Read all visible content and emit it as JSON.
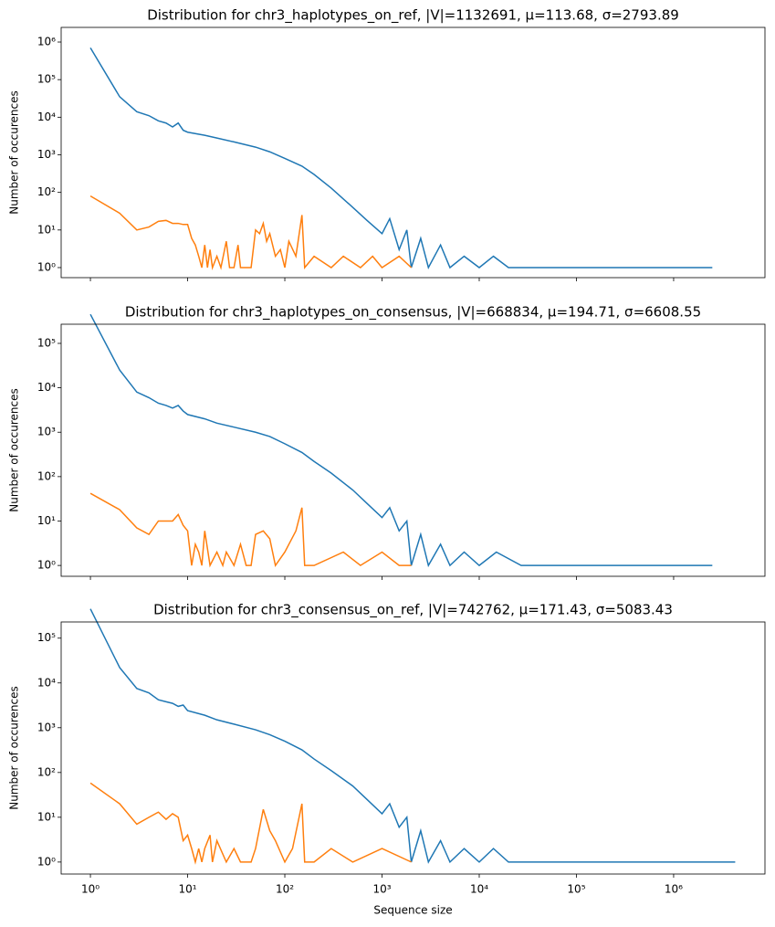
{
  "chart_data": [
    {
      "type": "line",
      "title": "Distribution for chr3_haplotypes_on_ref, |V|=1132691, μ=113.68, σ=2793.89",
      "ylabel": "Number of occurences",
      "log_x": true,
      "log_y": true,
      "xlim": [
        0.5,
        8700000
      ],
      "ylim": [
        0.54,
        2450000
      ],
      "xticks": [
        1,
        10,
        100,
        1000,
        10000,
        100000,
        1000000
      ],
      "yticks": [
        {
          "value": 1,
          "label": "10⁰"
        },
        {
          "value": 10,
          "label": "10¹"
        },
        {
          "value": 100,
          "label": "10²"
        },
        {
          "value": 1000,
          "label": "10³"
        },
        {
          "value": 10000,
          "label": "10⁴"
        },
        {
          "value": 100000,
          "label": "10⁵"
        },
        {
          "value": 1000000,
          "label": "10⁶"
        }
      ],
      "series": [
        {
          "color": "#1f77b4",
          "x": [
            1,
            2,
            3,
            4,
            5,
            6,
            7,
            8,
            9,
            10,
            15,
            20,
            30,
            50,
            70,
            100,
            150,
            200,
            300,
            500,
            700,
            1000,
            1200,
            1500,
            1800,
            2000,
            2500,
            3000,
            4000,
            5000,
            7000,
            10000,
            14000,
            20000,
            2500000
          ],
          "values": [
            700000,
            35000,
            14000,
            11000,
            8000,
            7000,
            5500,
            7000,
            4500,
            4000,
            3300,
            2800,
            2200,
            1600,
            1200,
            800,
            500,
            300,
            130,
            40,
            18,
            8,
            20,
            3,
            10,
            1,
            6,
            1,
            4,
            1,
            2,
            1,
            2,
            1,
            1
          ]
        },
        {
          "color": "#ff7f0e",
          "x": [
            1,
            2,
            3,
            4,
            5,
            6,
            7,
            8,
            9,
            10,
            11,
            12,
            13,
            14,
            15,
            16,
            17,
            18,
            20,
            22,
            25,
            27,
            30,
            33,
            35,
            40,
            45,
            50,
            55,
            60,
            65,
            70,
            80,
            90,
            100,
            110,
            130,
            150,
            160,
            200,
            300,
            400,
            600,
            800,
            1000,
            1500,
            2000
          ],
          "values": [
            80,
            28,
            10,
            12,
            17,
            18,
            15,
            15,
            14,
            14,
            6,
            4,
            2,
            1,
            4,
            1,
            3,
            1,
            2,
            1,
            5,
            1,
            1,
            4,
            1,
            1,
            1,
            10,
            8,
            15,
            5,
            8,
            2,
            3,
            1,
            5,
            2,
            25,
            1,
            2,
            1,
            2,
            1,
            2,
            1,
            2,
            1
          ]
        }
      ]
    },
    {
      "type": "line",
      "title": "Distribution for chr3_haplotypes_on_consensus, |V|=668834, μ=194.71, σ=6608.55",
      "ylabel": "Number of occurences",
      "log_x": true,
      "log_y": true,
      "xlim": [
        0.5,
        8700000
      ],
      "ylim": [
        0.57,
        270000
      ],
      "xticks": [
        1,
        10,
        100,
        1000,
        10000,
        100000,
        1000000
      ],
      "yticks": [
        {
          "value": 1,
          "label": "10⁰"
        },
        {
          "value": 10,
          "label": "10¹"
        },
        {
          "value": 100,
          "label": "10²"
        },
        {
          "value": 1000,
          "label": "10³"
        },
        {
          "value": 10000,
          "label": "10⁴"
        },
        {
          "value": 100000,
          "label": "10⁵"
        }
      ],
      "series": [
        {
          "color": "#1f77b4",
          "x": [
            1,
            2,
            3,
            4,
            5,
            6,
            7,
            8,
            9,
            10,
            15,
            20,
            30,
            50,
            70,
            100,
            150,
            200,
            300,
            500,
            700,
            1000,
            1200,
            1500,
            1800,
            2000,
            2500,
            3000,
            4000,
            5000,
            7000,
            10000,
            15000,
            27000,
            2500000
          ],
          "values": [
            450000,
            25000,
            8000,
            6000,
            4500,
            4000,
            3500,
            4000,
            3000,
            2500,
            2000,
            1600,
            1300,
            1000,
            800,
            550,
            350,
            220,
            120,
            50,
            25,
            12,
            20,
            6,
            10,
            1,
            5,
            1,
            3,
            1,
            2,
            1,
            2,
            1,
            1
          ]
        },
        {
          "color": "#ff7f0e",
          "x": [
            1,
            2,
            3,
            4,
            5,
            6,
            7,
            8,
            9,
            10,
            11,
            12,
            13,
            14,
            15,
            17,
            20,
            23,
            25,
            30,
            35,
            40,
            45,
            50,
            60,
            70,
            80,
            100,
            130,
            150,
            160,
            200,
            400,
            600,
            1000,
            1500,
            2000
          ],
          "values": [
            42,
            18,
            7,
            5,
            10,
            10,
            10,
            14,
            8,
            6,
            1,
            3,
            2,
            1,
            6,
            1,
            2,
            1,
            2,
            1,
            3,
            1,
            1,
            5,
            6,
            4,
            1,
            2,
            6,
            20,
            1,
            1,
            2,
            1,
            2,
            1,
            1
          ]
        }
      ]
    },
    {
      "type": "line",
      "title": "Distribution for chr3_consensus_on_ref, |V|=742762, μ=171.43, σ=5083.43",
      "ylabel": "Number of occurences",
      "xlabel": "Sequence size",
      "log_x": true,
      "log_y": true,
      "xlim": [
        0.5,
        8700000
      ],
      "ylim": [
        0.54,
        230000
      ],
      "xticks": [
        {
          "value": 1,
          "label": "10⁰"
        },
        {
          "value": 10,
          "label": "10¹"
        },
        {
          "value": 100,
          "label": "10²"
        },
        {
          "value": 1000,
          "label": "10³"
        },
        {
          "value": 10000,
          "label": "10⁴"
        },
        {
          "value": 100000,
          "label": "10⁵"
        },
        {
          "value": 1000000,
          "label": "10⁶"
        }
      ],
      "yticks": [
        {
          "value": 1,
          "label": "10⁰"
        },
        {
          "value": 10,
          "label": "10¹"
        },
        {
          "value": 100,
          "label": "10²"
        },
        {
          "value": 1000,
          "label": "10³"
        },
        {
          "value": 10000,
          "label": "10⁴"
        },
        {
          "value": 100000,
          "label": "10⁵"
        }
      ],
      "series": [
        {
          "color": "#1f77b4",
          "x": [
            1,
            2,
            3,
            4,
            5,
            6,
            7,
            8,
            9,
            10,
            15,
            20,
            30,
            50,
            70,
            100,
            150,
            200,
            300,
            500,
            700,
            1000,
            1200,
            1500,
            1800,
            2000,
            2500,
            3000,
            4000,
            5000,
            7000,
            10000,
            14000,
            20000,
            4300000
          ],
          "values": [
            450000,
            22000,
            7500,
            6000,
            4200,
            3800,
            3500,
            3000,
            3200,
            2400,
            1900,
            1500,
            1200,
            900,
            700,
            500,
            320,
            200,
            110,
            50,
            25,
            12,
            20,
            6,
            10,
            1,
            5,
            1,
            3,
            1,
            2,
            1,
            2,
            1,
            1
          ]
        },
        {
          "color": "#ff7f0e",
          "x": [
            1,
            2,
            3,
            4,
            5,
            6,
            7,
            8,
            9,
            10,
            11,
            12,
            13,
            14,
            15,
            17,
            18,
            20,
            25,
            30,
            35,
            45,
            50,
            60,
            70,
            80,
            100,
            120,
            150,
            160,
            200,
            300,
            500,
            1000,
            2000
          ],
          "values": [
            58,
            20,
            7,
            10,
            13,
            9,
            12,
            10,
            3,
            4,
            2,
            1,
            2,
            1,
            2,
            4,
            1,
            3,
            1,
            2,
            1,
            1,
            2,
            15,
            5,
            3,
            1,
            2,
            20,
            1,
            1,
            2,
            1,
            2,
            1
          ]
        }
      ]
    }
  ]
}
